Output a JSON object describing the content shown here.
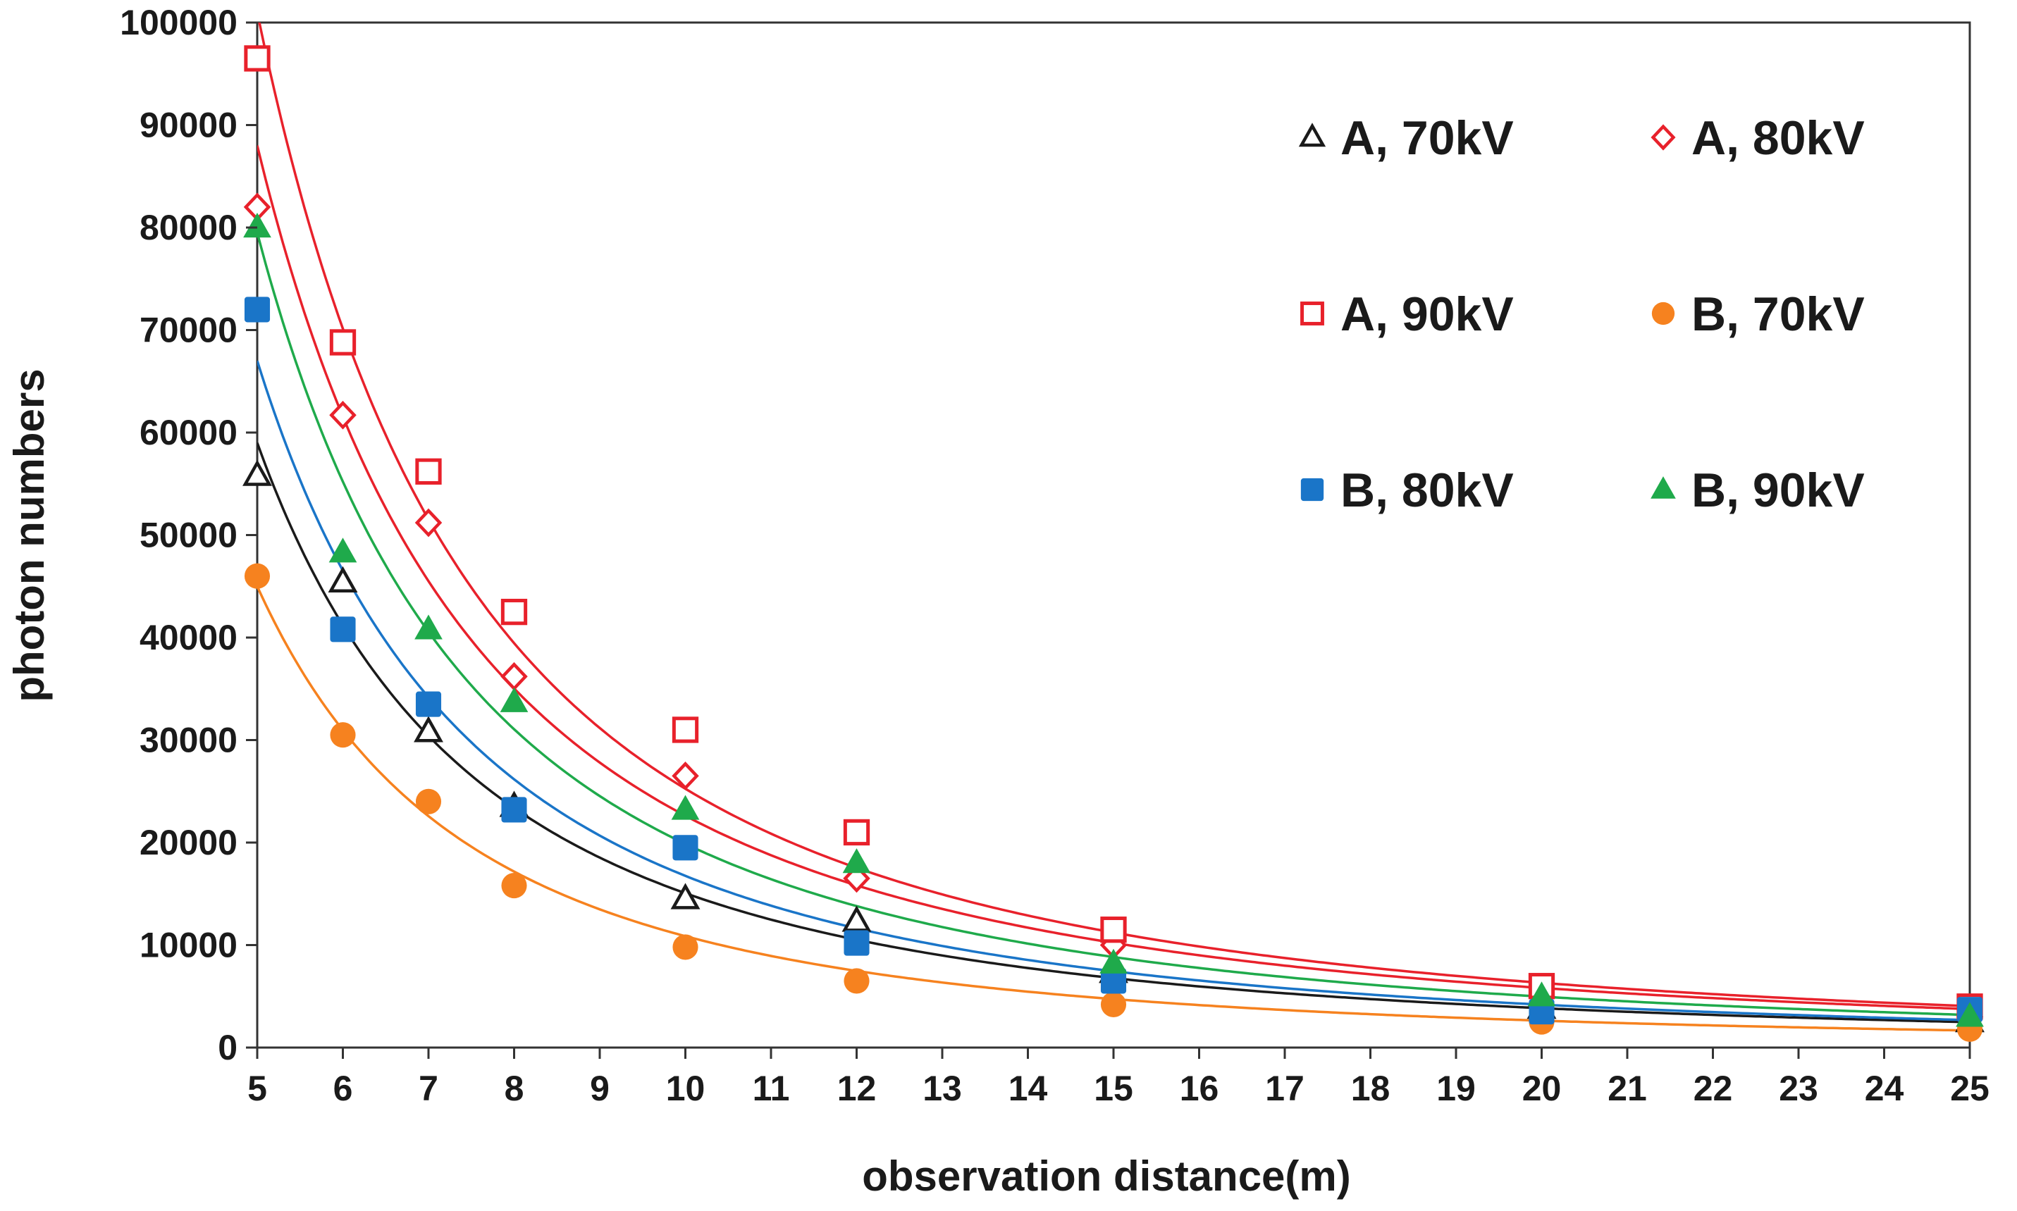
{
  "chart_data": {
    "type": "scatter",
    "title": "",
    "xlabel": "observation distance(m)",
    "ylabel": "photon numbers",
    "xlim": [
      5,
      25
    ],
    "ylim": [
      0,
      100000
    ],
    "x_ticks": [
      5,
      6,
      7,
      8,
      9,
      10,
      11,
      12,
      13,
      14,
      15,
      16,
      17,
      18,
      19,
      20,
      21,
      22,
      23,
      24,
      25
    ],
    "y_ticks": [
      0,
      10000,
      20000,
      30000,
      40000,
      50000,
      60000,
      70000,
      80000,
      90000,
      100000
    ],
    "x_tick_labels": [
      "5",
      "6",
      "7",
      "8",
      "9",
      "10",
      "11",
      "12",
      "13",
      "14",
      "15",
      "16",
      "17",
      "18",
      "19",
      "20",
      "21",
      "22",
      "23",
      "24",
      "25"
    ],
    "y_tick_labels": [
      "0",
      "10000",
      "20000",
      "30000",
      "40000",
      "50000",
      "60000",
      "70000",
      "80000",
      "90000",
      "100000"
    ],
    "grid": false,
    "legend_position": "top-right",
    "x": [
      5,
      6,
      7,
      8,
      10,
      12,
      15,
      20,
      25
    ],
    "fit": "power-law trend line per series",
    "series": [
      {
        "name": "A, 70kV",
        "marker": "triangle-open",
        "color": "#1a1a1a",
        "values": [
          55800,
          45400,
          30800,
          23500,
          14500,
          12300,
          7300,
          3800,
          2500
        ],
        "fit_curve": {
          "a": 59000,
          "b": -1.97
        }
      },
      {
        "name": "A, 80kV",
        "marker": "diamond-open",
        "color": "#e8212b",
        "values": [
          82000,
          61700,
          51200,
          36200,
          26500,
          16500,
          10000,
          5000,
          3000
        ],
        "fit_curve": {
          "a": 88000,
          "b": -1.96
        }
      },
      {
        "name": "A, 90kV",
        "marker": "square-open",
        "color": "#e8212b",
        "values": [
          96500,
          68800,
          56200,
          42500,
          31000,
          21000,
          11500,
          6000,
          4000
        ],
        "fit_curve": {
          "a": 101000,
          "b": -2.0
        }
      },
      {
        "name": "B, 70kV",
        "marker": "circle-filled",
        "color": "#f6821f",
        "values": [
          46000,
          30500,
          24000,
          15800,
          9800,
          6500,
          4200,
          2500,
          1800
        ],
        "fit_curve": {
          "a": 45000,
          "b": -2.05
        }
      },
      {
        "name": "B, 80kV",
        "marker": "square-filled",
        "color": "#1a75c8",
        "values": [
          72000,
          40800,
          33500,
          23200,
          19500,
          10200,
          6500,
          3500,
          3700
        ],
        "fit_curve": {
          "a": 67000,
          "b": -2.0
        }
      },
      {
        "name": "B, 90kV",
        "marker": "triangle-filled",
        "color": "#1faa4b",
        "values": [
          80000,
          48300,
          40800,
          33700,
          23200,
          18000,
          8200,
          5000,
          3000
        ],
        "fit_curve": {
          "a": 79500,
          "b": -2.0
        }
      }
    ]
  }
}
